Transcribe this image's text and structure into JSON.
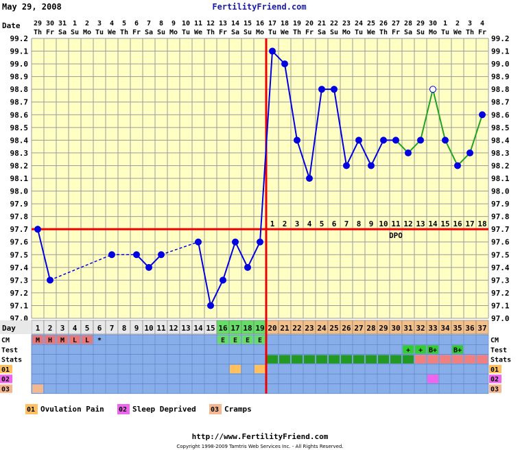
{
  "header": {
    "date": "May 29, 2008",
    "site": "FertilityFriend.com"
  },
  "footer": {
    "url": "http://www.FertilityFriend.com",
    "copyright": "Copyright 1998-2009 Tamtris Web Services Inc. - All Rights Reserved."
  },
  "chart_data": {
    "type": "line",
    "row_labels": {
      "date": "Date",
      "day": "Day",
      "cm": "CM",
      "test": "Test",
      "stats": "Stats",
      "dpo": "DPO"
    },
    "dates": [
      "29",
      "30",
      "31",
      "1",
      "2",
      "3",
      "4",
      "5",
      "6",
      "7",
      "8",
      "9",
      "10",
      "11",
      "12",
      "13",
      "14",
      "15",
      "16",
      "17",
      "18",
      "19",
      "20",
      "21",
      "22",
      "23",
      "24",
      "25",
      "26",
      "27",
      "28",
      "29",
      "30",
      "1",
      "2",
      "3",
      "4"
    ],
    "weekdays": [
      "Th",
      "Fr",
      "Sa",
      "Su",
      "Mo",
      "Tu",
      "We",
      "Th",
      "Fr",
      "Sa",
      "Su",
      "Mo",
      "Tu",
      "We",
      "Th",
      "Fr",
      "Sa",
      "Su",
      "Mo",
      "Tu",
      "We",
      "Th",
      "Fr",
      "Sa",
      "Su",
      "Mo",
      "Tu",
      "We",
      "Th",
      "Fr",
      "Sa",
      "Su",
      "Mo",
      "Tu",
      "We",
      "Th",
      "Fr"
    ],
    "cycle_days": [
      "1",
      "2",
      "3",
      "4",
      "5",
      "6",
      "7",
      "8",
      "9",
      "10",
      "11",
      "12",
      "13",
      "14",
      "15",
      "16",
      "17",
      "18",
      "19",
      "20",
      "21",
      "22",
      "23",
      "24",
      "25",
      "26",
      "27",
      "28",
      "29",
      "30",
      "31",
      "32",
      "33",
      "34",
      "35",
      "36",
      "37"
    ],
    "temperatures": [
      97.7,
      97.3,
      null,
      null,
      null,
      null,
      97.5,
      null,
      97.5,
      97.4,
      97.5,
      null,
      null,
      97.6,
      97.1,
      97.3,
      97.6,
      97.4,
      97.6,
      99.1,
      99.0,
      98.4,
      98.1,
      98.8,
      98.8,
      98.2,
      98.4,
      98.2,
      98.4,
      98.4,
      98.3,
      98.4,
      98.8,
      98.4,
      98.2,
      98.3,
      98.6
    ],
    "point_styles": [
      "solid",
      "solid",
      null,
      null,
      null,
      null,
      "solid",
      null,
      "solid",
      "solid",
      "solid",
      null,
      null,
      "solid",
      "solid",
      "solid",
      "solid",
      "solid",
      "solid",
      "solid",
      "solid",
      "solid",
      "solid",
      "solid",
      "solid",
      "solid",
      "solid",
      "solid",
      "solid",
      "solid",
      "solid",
      "solid",
      "open",
      "solid",
      "solid",
      "solid",
      "solid"
    ],
    "y_ticks": [
      "97.0",
      "97.1",
      "97.2",
      "97.3",
      "97.4",
      "97.5",
      "97.6",
      "97.7",
      "97.8",
      "97.9",
      "98.0",
      "98.1",
      "98.2",
      "98.3",
      "98.4",
      "98.5",
      "98.6",
      "98.7",
      "98.8",
      "98.9",
      "99.0",
      "99.1",
      "99.2"
    ],
    "ylim": [
      97.0,
      99.2
    ],
    "coverline": 97.7,
    "ovulation_day_index": 18,
    "dpo_labels": [
      "1",
      "2",
      "3",
      "4",
      "5",
      "6",
      "7",
      "8",
      "9",
      "10",
      "11",
      "12",
      "13",
      "14",
      "15",
      "16",
      "17",
      "18"
    ],
    "cm": [
      "M",
      "H",
      "M",
      "L",
      "L",
      "*",
      "",
      "",
      "",
      "",
      "",
      "",
      "",
      "",
      "",
      "E",
      "E",
      "E",
      "E",
      "",
      "",
      "",
      "",
      "",
      "",
      "",
      "",
      "",
      "",
      "",
      "",
      "",
      "",
      "",
      "",
      "",
      ""
    ],
    "tests": [
      "",
      "",
      "",
      "",
      "",
      "",
      "",
      "",
      "",
      "",
      "",
      "",
      "",
      "",
      "",
      "",
      "",
      "",
      "",
      "",
      "",
      "",
      "",
      "",
      "",
      "",
      "",
      "",
      "",
      "",
      "+",
      "+",
      "B+",
      "",
      "B+",
      "",
      ""
    ],
    "stats": [
      "",
      "",
      "",
      "",
      "",
      "",
      "",
      "",
      "",
      "",
      "",
      "",
      "",
      "",
      "",
      "",
      "",
      "",
      "",
      "luteal",
      "luteal",
      "luteal",
      "luteal",
      "luteal",
      "luteal",
      "luteal",
      "luteal",
      "luteal",
      "luteal",
      "luteal",
      "luteal",
      "positive",
      "positive",
      "positive",
      "positive",
      "positive",
      "positive"
    ],
    "symptom_rows": [
      "01",
      "02",
      "03"
    ],
    "symptoms": {
      "01": [
        16,
        18
      ],
      "02": [
        32
      ],
      "03": [
        0
      ]
    },
    "legend": [
      {
        "code": "01",
        "label": "Ovulation Pain"
      },
      {
        "code": "02",
        "label": "Sleep Deprived"
      },
      {
        "code": "03",
        "label": "Cramps"
      }
    ],
    "colors": {
      "chart_bg": "#ffffc4",
      "grid": "#9a9a9a",
      "temp_line": "#0000e0",
      "green_line": "#1fa31f",
      "red_line": "#ee0000",
      "row_blue": "#88aeea",
      "day_pre": "#e8e8e8",
      "day_fertile": "#66dd66",
      "day_post": "#f4c08a",
      "cm_red": "#e87878",
      "cm_green": "#66dd66",
      "test_green": "#33cc33",
      "stats_green": "#229922",
      "stats_pink": "#f08080",
      "code01": "#ffc060",
      "code02": "#ee66ee",
      "code03": "#f4b890"
    }
  }
}
